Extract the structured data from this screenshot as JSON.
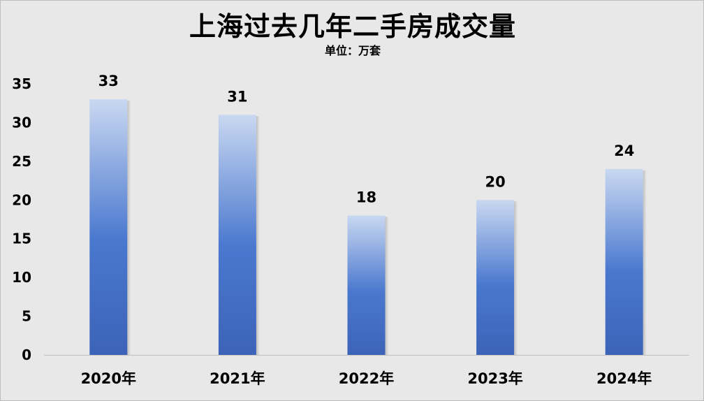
{
  "chart_data": {
    "type": "bar",
    "title": "上海过去几年二手房成交量",
    "subtitle": "单位：万套",
    "categories": [
      "2020年",
      "2021年",
      "2022年",
      "2023年",
      "2024年"
    ],
    "values": [
      33,
      31,
      18,
      20,
      24
    ],
    "ylim": [
      0,
      35
    ],
    "yticks": [
      0,
      5,
      10,
      15,
      20,
      25,
      30,
      35
    ],
    "data_labels": true,
    "grid": false,
    "legend": "none",
    "colors": {
      "bar_top": "#c9d8f1",
      "bar_mid": "#4a78cf",
      "bar_bottom": "#3c63b8",
      "background": "#e8e8e8",
      "axis": "#bfbfbf"
    }
  }
}
